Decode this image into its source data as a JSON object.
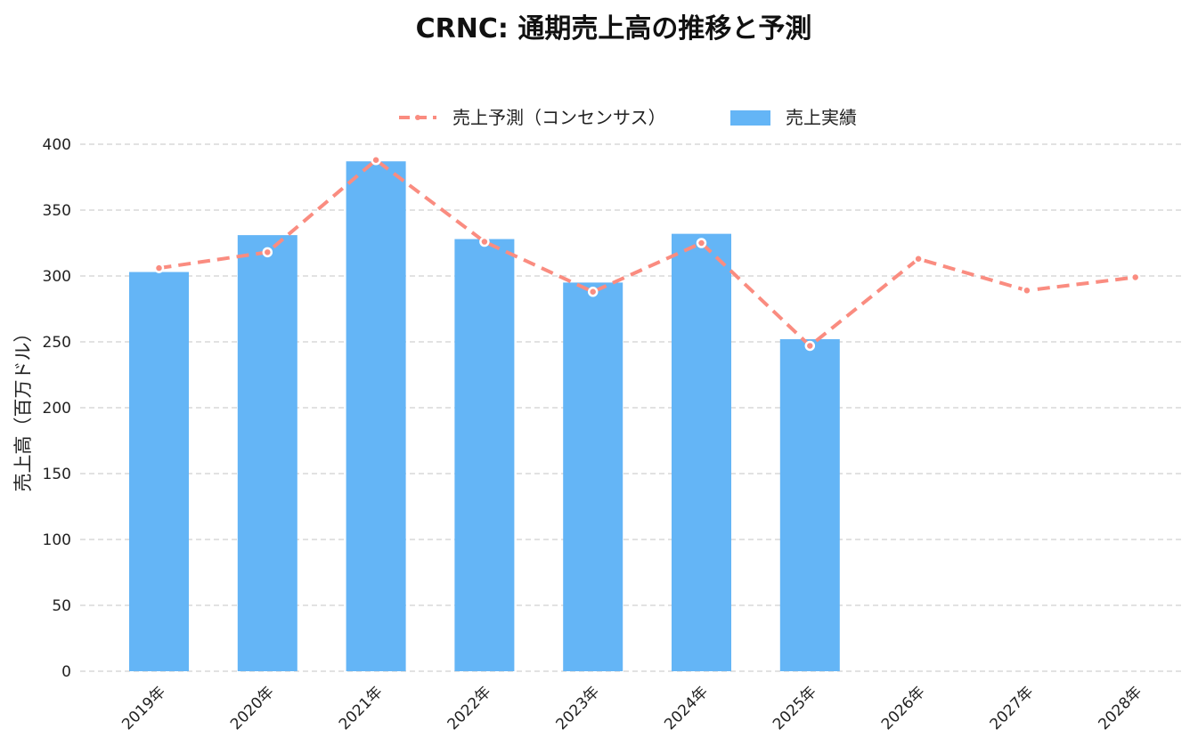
{
  "chart_data": {
    "type": "bar",
    "title": "CRNC: 通期売上高の推移と予測",
    "xlabel": "",
    "ylabel": "売上高（百万ドル）",
    "ylim": [
      0,
      400
    ],
    "yticks": [
      "0",
      "50",
      "100",
      "150",
      "200",
      "250",
      "300",
      "350",
      "400"
    ],
    "categories": [
      "2019年",
      "2020年",
      "2021年",
      "2022年",
      "2023年",
      "2024年",
      "2025年",
      "2026年",
      "2027年",
      "2028年"
    ],
    "grid": true,
    "legend_position": "top-center",
    "series": [
      {
        "name": "売上予測（コンセンサス）",
        "type": "line",
        "style": "dashed",
        "color": "#FA8C80",
        "values": [
          306,
          318,
          388,
          326,
          288,
          325,
          247,
          313,
          289,
          299
        ]
      },
      {
        "name": "売上実績",
        "type": "bar",
        "color": "#64B5F6",
        "values": [
          303,
          331,
          387,
          328,
          295,
          332,
          252,
          null,
          null,
          null
        ]
      }
    ]
  }
}
